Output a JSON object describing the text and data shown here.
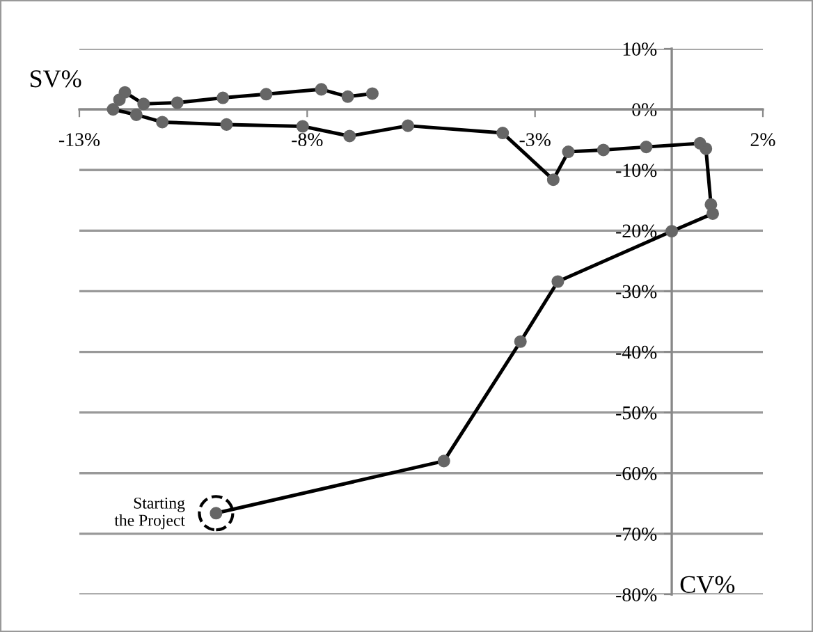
{
  "chart_data": {
    "type": "line",
    "xlabel": "CV%",
    "ylabel": "SV%",
    "xlim": [
      -13,
      2
    ],
    "ylim": [
      -80,
      10
    ],
    "xticks": [
      {
        "value": -13,
        "label": "-13%"
      },
      {
        "value": -8,
        "label": "-8%"
      },
      {
        "value": -3,
        "label": "-3%"
      },
      {
        "value": 2,
        "label": "2%"
      }
    ],
    "yticks": [
      {
        "value": -80,
        "label": "-80%"
      },
      {
        "value": -70,
        "label": "-70%"
      },
      {
        "value": -60,
        "label": "-60%"
      },
      {
        "value": -50,
        "label": "-50%"
      },
      {
        "value": -40,
        "label": "-40%"
      },
      {
        "value": -30,
        "label": "-30%"
      },
      {
        "value": -20,
        "label": "-20%"
      },
      {
        "value": -10,
        "label": "-10%"
      },
      {
        "value": 0,
        "label": "0%"
      },
      {
        "value": 10,
        "label": "10%"
      }
    ],
    "grid": "y",
    "marker": "circle",
    "line_style": "solid",
    "series": [
      {
        "color": "#000000",
        "x": [
          -10.0,
          -5.0,
          -3.32,
          -2.5,
          0.0,
          0.9,
          0.86,
          0.75,
          0.62,
          -0.56,
          -1.5,
          -2.27,
          -2.6,
          -3.71,
          -5.79,
          -7.07,
          -8.1,
          -9.77,
          -11.18,
          -11.75,
          -12.26,
          -12.12,
          -12.0,
          -11.59,
          -10.85,
          -9.85,
          -8.9,
          -7.69,
          -7.11,
          -6.57
        ],
        "values": [
          -66.6,
          -58.0,
          -38.3,
          -28.4,
          -20.1,
          -17.2,
          -15.7,
          -6.5,
          -5.6,
          -6.2,
          -6.7,
          -7.0,
          -11.6,
          -3.9,
          -2.7,
          -4.4,
          -2.8,
          -2.5,
          -2.1,
          -0.9,
          0.0,
          1.6,
          2.8,
          0.9,
          1.1,
          1.9,
          2.5,
          3.3,
          2.1,
          2.6
        ]
      }
    ],
    "annotations": [
      {
        "text": "Starting\nthe Project",
        "x": -10.0,
        "y": -66.6
      }
    ]
  }
}
